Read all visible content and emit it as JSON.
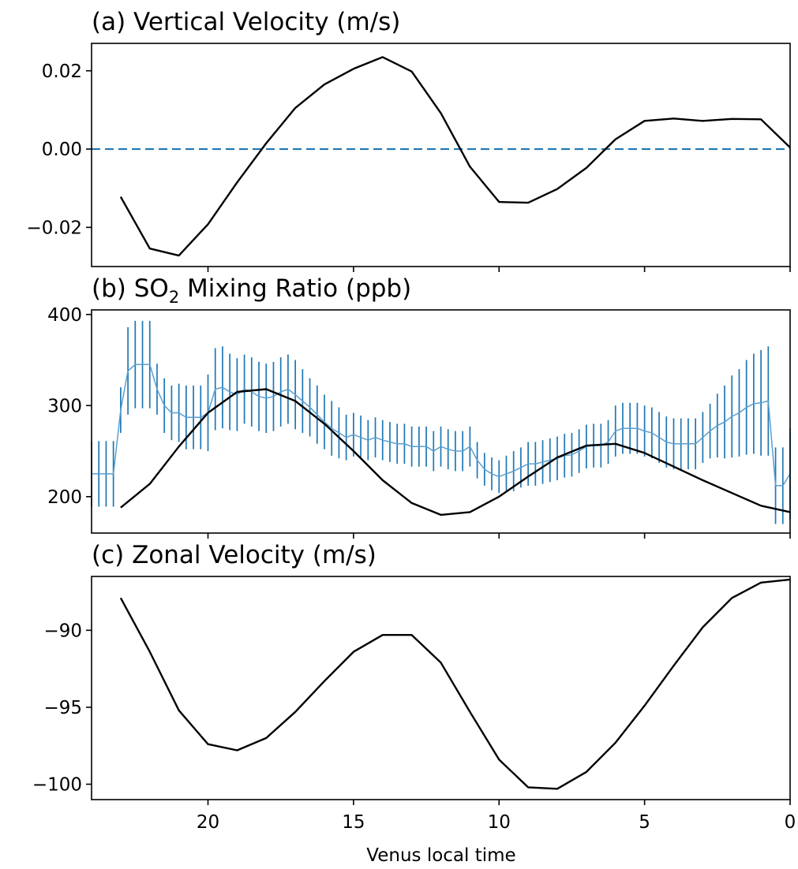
{
  "xlabel": "Venus local time",
  "x_ticks": [
    20,
    15,
    10,
    5,
    0
  ],
  "chart_data": [
    {
      "type": "line",
      "title": "(a) Vertical Velocity (m/s)",
      "xlim": [
        24,
        0
      ],
      "ylim": [
        -0.03,
        0.027
      ],
      "yticks": [
        0.02,
        0.0,
        -0.02
      ],
      "ytick_labels": [
        "0.02",
        "0.00",
        "−0.02"
      ],
      "show_xtick_labels": false,
      "reference_line": {
        "y": 0,
        "color": "#1f77b4",
        "style": "dashed"
      },
      "series": [
        {
          "color": "#000000",
          "x": [
            23,
            22,
            21,
            20,
            19,
            18,
            17,
            16,
            15,
            14,
            13,
            12,
            11,
            10,
            9,
            8,
            7,
            6,
            5,
            4,
            3,
            2,
            1,
            0
          ],
          "y": [
            -0.0122,
            -0.0254,
            -0.0272,
            -0.0192,
            -0.0085,
            0.0015,
            0.0105,
            0.0165,
            0.0205,
            0.0235,
            0.0198,
            0.0092,
            -0.0045,
            -0.0135,
            -0.0137,
            -0.0102,
            -0.0048,
            0.0025,
            0.0072,
            0.0078,
            0.0072,
            0.0077,
            0.0076,
            0.0004
          ]
        }
      ]
    },
    {
      "type": "line",
      "title": "(b) SO",
      "title_subscript": "2",
      "title_suffix": " Mixing Ratio (ppb)",
      "xlim": [
        24,
        0
      ],
      "ylim": [
        160,
        405
      ],
      "yticks": [
        400,
        300,
        200
      ],
      "ytick_labels": [
        "400",
        "300",
        "200"
      ],
      "show_xtick_labels": false,
      "series": [
        {
          "color": "#000000",
          "x": [
            23,
            22,
            21,
            20,
            19,
            18,
            17,
            16,
            15,
            14,
            13,
            12,
            11,
            10,
            9,
            8,
            7,
            6,
            5,
            4,
            3,
            2,
            1,
            0
          ],
          "y": [
            188,
            214,
            255,
            292,
            315,
            318,
            305,
            280,
            250,
            218,
            193,
            180,
            183,
            200,
            222,
            243,
            256,
            258,
            248,
            233,
            218,
            204,
            190,
            183
          ]
        }
      ],
      "observations": {
        "color": "#1f77b4",
        "x": [
          24.0,
          23.75,
          23.5,
          23.25,
          23.0,
          22.75,
          22.5,
          22.25,
          22.0,
          21.75,
          21.5,
          21.25,
          21.0,
          20.75,
          20.5,
          20.25,
          20.0,
          19.75,
          19.5,
          19.25,
          19.0,
          18.75,
          18.5,
          18.25,
          18.0,
          17.75,
          17.5,
          17.25,
          17.0,
          16.75,
          16.5,
          16.25,
          16.0,
          15.75,
          15.5,
          15.25,
          15.0,
          14.75,
          14.5,
          14.25,
          14.0,
          13.75,
          13.5,
          13.25,
          13.0,
          12.75,
          12.5,
          12.25,
          12.0,
          11.75,
          11.5,
          11.25,
          11.0,
          10.75,
          10.5,
          10.25,
          10.0,
          9.75,
          9.5,
          9.25,
          9.0,
          8.75,
          8.5,
          8.25,
          8.0,
          7.75,
          7.5,
          7.25,
          7.0,
          6.75,
          6.5,
          6.25,
          6.0,
          5.75,
          5.5,
          5.25,
          5.0,
          4.75,
          4.5,
          4.25,
          4.0,
          3.75,
          3.5,
          3.25,
          3.0,
          2.75,
          2.5,
          2.25,
          2.0,
          1.75,
          1.5,
          1.25,
          1.0,
          0.75,
          0.5,
          0.25,
          0.0
        ],
        "y": [
          225,
          225,
          225,
          225,
          295,
          338,
          345,
          345,
          345,
          318,
          300,
          292,
          292,
          287,
          287,
          287,
          292,
          318,
          320,
          315,
          312,
          318,
          315,
          310,
          308,
          310,
          315,
          318,
          312,
          305,
          298,
          290,
          282,
          275,
          270,
          265,
          268,
          265,
          262,
          265,
          262,
          260,
          258,
          258,
          255,
          255,
          255,
          250,
          255,
          252,
          250,
          250,
          255,
          240,
          230,
          225,
          222,
          225,
          228,
          232,
          236,
          236,
          238,
          240,
          242,
          245,
          246,
          250,
          255,
          256,
          256,
          260,
          272,
          275,
          275,
          275,
          272,
          270,
          265,
          260,
          258,
          258,
          258,
          258,
          265,
          272,
          278,
          282,
          288,
          292,
          298,
          302,
          303,
          305,
          212,
          212,
          225
        ],
        "err": [
          36,
          36,
          36,
          36,
          25,
          48,
          48,
          48,
          48,
          28,
          30,
          30,
          32,
          35,
          35,
          35,
          42,
          45,
          45,
          42,
          40,
          38,
          38,
          38,
          38,
          38,
          38,
          38,
          38,
          35,
          32,
          32,
          30,
          30,
          28,
          25,
          24,
          24,
          22,
          22,
          22,
          22,
          22,
          22,
          22,
          22,
          22,
          22,
          22,
          22,
          22,
          22,
          22,
          20,
          18,
          18,
          18,
          20,
          22,
          22,
          24,
          24,
          24,
          24,
          24,
          24,
          24,
          24,
          24,
          24,
          24,
          24,
          28,
          28,
          28,
          28,
          28,
          28,
          28,
          28,
          28,
          28,
          28,
          28,
          28,
          30,
          35,
          40,
          45,
          48,
          52,
          55,
          58,
          60,
          42,
          42,
          50
        ]
      }
    },
    {
      "type": "line",
      "title": "(c) Zonal Velocity (m/s)",
      "xlim": [
        24,
        0
      ],
      "ylim": [
        -101,
        -86.5
      ],
      "yticks": [
        -90,
        -95,
        -100
      ],
      "ytick_labels": [
        "−90",
        "−95",
        "−100"
      ],
      "show_xtick_labels": true,
      "series": [
        {
          "color": "#000000",
          "x": [
            23,
            22,
            21,
            20,
            19,
            18,
            17,
            16,
            15,
            14,
            13,
            12,
            11,
            10,
            9,
            8,
            7,
            6,
            5,
            4,
            3,
            2,
            1,
            0
          ],
          "y": [
            -87.9,
            -91.4,
            -95.2,
            -97.4,
            -97.8,
            -97.0,
            -95.3,
            -93.3,
            -91.4,
            -90.3,
            -90.3,
            -92.1,
            -95.3,
            -98.4,
            -100.2,
            -100.3,
            -99.2,
            -97.3,
            -94.9,
            -92.3,
            -89.8,
            -87.9,
            -86.9,
            -86.7
          ]
        }
      ]
    }
  ]
}
